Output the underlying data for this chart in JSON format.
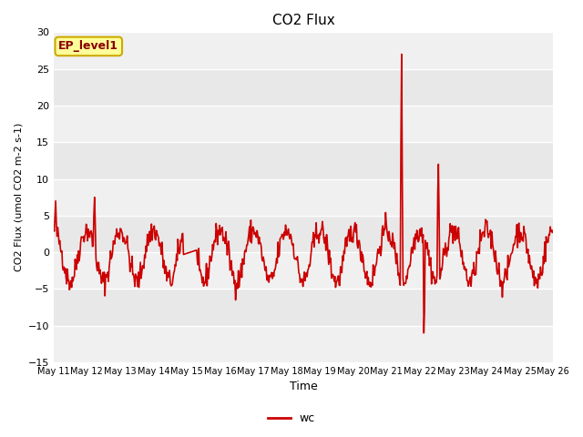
{
  "title": "CO2 Flux",
  "xlabel": "Time",
  "ylabel": "CO2 Flux (umol CO2 m-2 s-1)",
  "ylim": [
    -15,
    30
  ],
  "yticks": [
    -15,
    -10,
    -5,
    0,
    5,
    10,
    15,
    20,
    25,
    30
  ],
  "line_color": "#cc0000",
  "line_width": 1.2,
  "fig_bg_color": "#ffffff",
  "plot_bg_color": "#f0f0f0",
  "grid_color": "#ffffff",
  "legend_label": "wc",
  "annotation_text": "EP_level1",
  "annotation_bg": "#ffff99",
  "annotation_border": "#ccaa00",
  "annotation_text_color": "#880000",
  "n_days": 15,
  "n_per_day": 48
}
